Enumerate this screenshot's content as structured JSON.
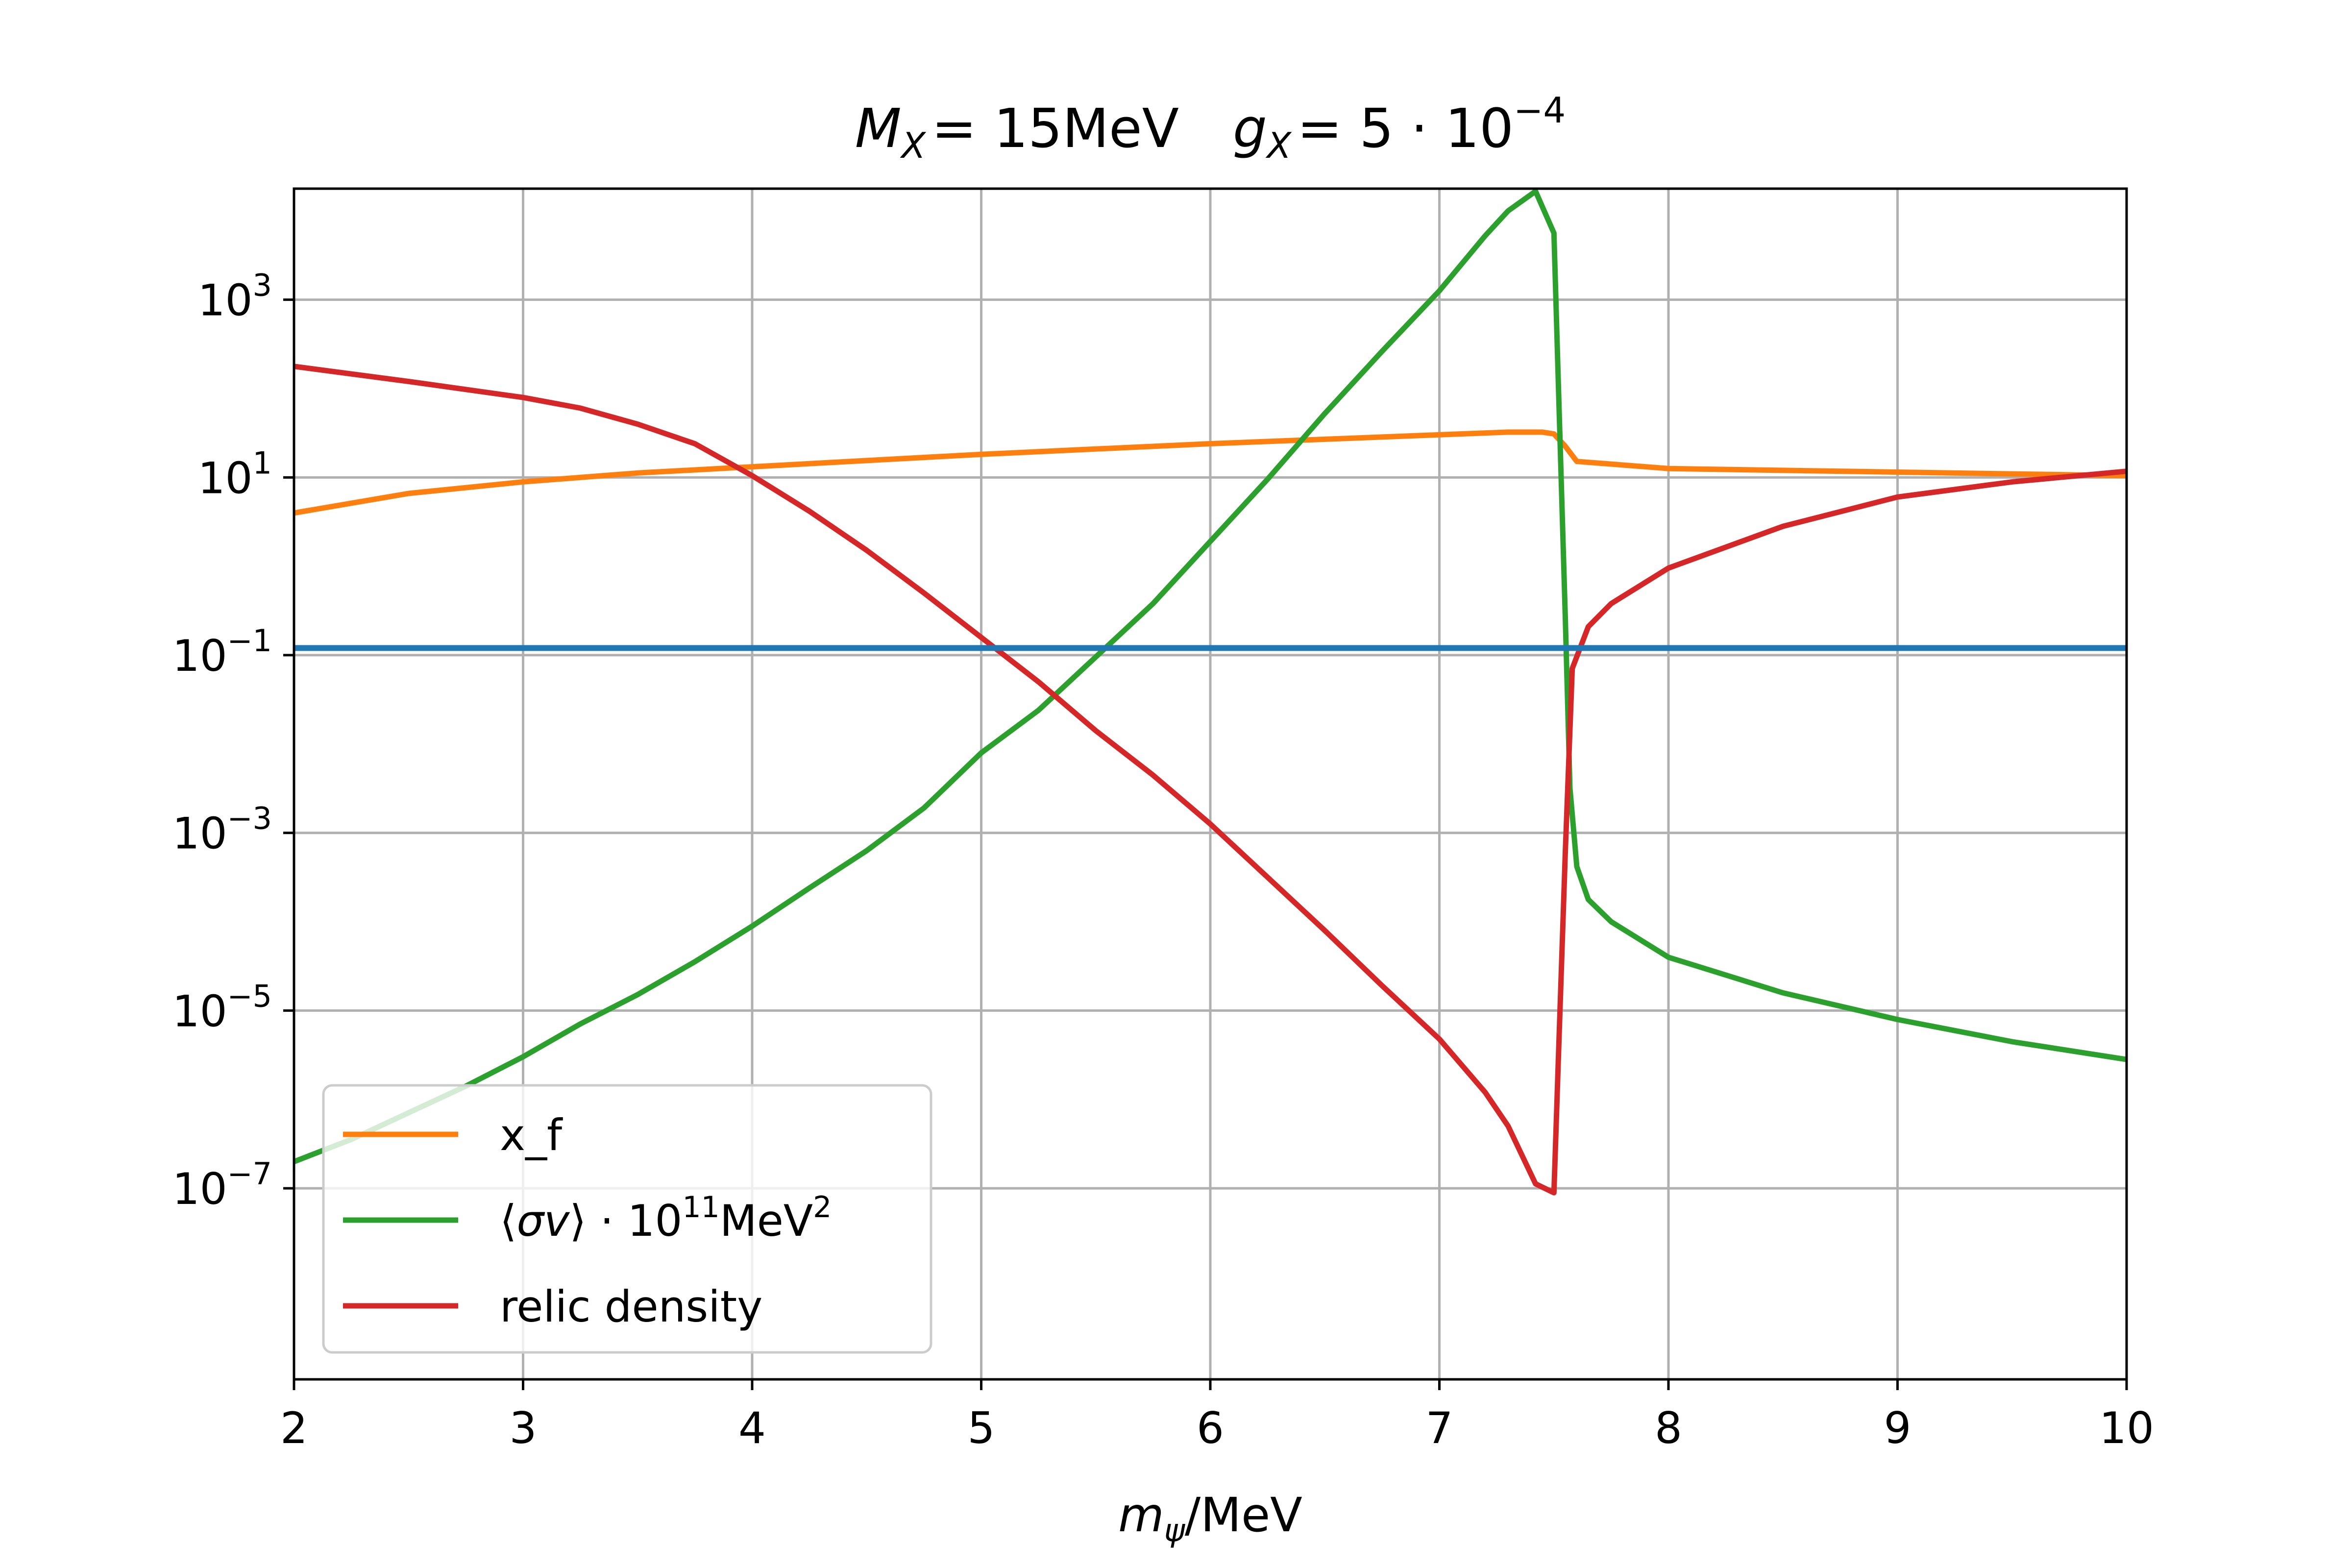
{
  "chart_data": {
    "type": "line",
    "title_parts": {
      "mx_symbol": "M",
      "mx_sub": "X",
      "mx_value": "= 15MeV",
      "gx_symbol": "g",
      "gx_sub": "X",
      "gx_value": "= 5 · 10",
      "gx_exp": "−4"
    },
    "xlabel_parts": {
      "symbol": "m",
      "sub": "ψ",
      "unit": "/MeV"
    },
    "ylabel": "",
    "xlim": [
      2,
      10
    ],
    "ylim_log10": [
      -9.15,
      4.25
    ],
    "y_scale": "log",
    "grid": true,
    "x_ticks": [
      2,
      3,
      4,
      5,
      6,
      7,
      8,
      9,
      10
    ],
    "x_tick_labels": [
      "2",
      "3",
      "4",
      "5",
      "6",
      "7",
      "8",
      "9",
      "10"
    ],
    "y_ticks": [
      {
        "base": "10",
        "exp": "3",
        "log10": 3
      },
      {
        "base": "10",
        "exp": "1",
        "log10": 1
      },
      {
        "base": "10",
        "exp": "−1",
        "log10": -1
      },
      {
        "base": "10",
        "exp": "−3",
        "log10": -3
      },
      {
        "base": "10",
        "exp": "−5",
        "log10": -5
      },
      {
        "base": "10",
        "exp": "−7",
        "log10": -7
      }
    ],
    "legend_position": "lower-left",
    "series": [
      {
        "name": "x_f",
        "legend_label": "x_f",
        "color": "#ff7f0e",
        "x": [
          2.0,
          2.5,
          3.0,
          3.5,
          4.0,
          4.5,
          5.0,
          5.5,
          6.0,
          6.5,
          7.0,
          7.3,
          7.45,
          7.5,
          7.55,
          7.6,
          8.0,
          8.5,
          9.0,
          9.5,
          10.0
        ],
        "log10_y": [
          0.6,
          0.82,
          0.95,
          1.05,
          1.12,
          1.19,
          1.26,
          1.32,
          1.38,
          1.43,
          1.48,
          1.51,
          1.51,
          1.49,
          1.35,
          1.18,
          1.1,
          1.08,
          1.06,
          1.04,
          1.02
        ]
      },
      {
        "name": "sigma_v",
        "legend_parts": {
          "open": "⟨",
          "sym": "σv",
          "close": "⟩",
          "dot": " · 10",
          "exp1": "11",
          "unit": "MeV",
          "exp2": "2"
        },
        "color": "#2ca02c",
        "x": [
          2.0,
          2.25,
          2.5,
          2.75,
          3.0,
          3.25,
          3.5,
          3.75,
          4.0,
          4.25,
          4.5,
          4.75,
          5.0,
          5.25,
          5.5,
          5.75,
          6.0,
          6.25,
          6.5,
          6.75,
          7.0,
          7.2,
          7.3,
          7.42,
          7.5,
          7.52,
          7.55,
          7.57,
          7.6,
          7.65,
          7.75,
          8.0,
          8.5,
          9.0,
          9.5,
          10.0
        ],
        "log10_y": [
          -6.7,
          -6.45,
          -6.15,
          -5.85,
          -5.52,
          -5.15,
          -4.82,
          -4.45,
          -4.05,
          -3.62,
          -3.2,
          -2.72,
          -2.1,
          -1.62,
          -1.02,
          -0.42,
          0.28,
          0.98,
          1.72,
          2.42,
          3.1,
          3.72,
          4.0,
          4.22,
          3.75,
          2.0,
          -0.6,
          -2.5,
          -3.38,
          -3.75,
          -4.0,
          -4.4,
          -4.8,
          -5.1,
          -5.35,
          -5.55
        ]
      },
      {
        "name": "relic_density",
        "legend_label": "relic density",
        "color": "#d62728",
        "x": [
          2.0,
          2.5,
          3.0,
          3.25,
          3.5,
          3.75,
          4.0,
          4.25,
          4.5,
          4.75,
          5.0,
          5.25,
          5.5,
          5.75,
          6.0,
          6.25,
          6.5,
          6.75,
          7.0,
          7.2,
          7.3,
          7.42,
          7.5,
          7.52,
          7.55,
          7.58,
          7.65,
          7.75,
          8.0,
          8.5,
          9.0,
          9.5,
          10.0
        ],
        "log10_y": [
          2.25,
          2.08,
          1.9,
          1.78,
          1.6,
          1.38,
          1.02,
          0.62,
          0.18,
          -0.3,
          -0.8,
          -1.3,
          -1.85,
          -2.35,
          -2.9,
          -3.5,
          -4.1,
          -4.72,
          -5.32,
          -5.92,
          -6.3,
          -6.95,
          -7.05,
          -5.5,
          -3.2,
          -1.15,
          -0.68,
          -0.42,
          -0.02,
          0.45,
          0.78,
          0.95,
          1.07
        ]
      },
      {
        "name": "observed_relic_density",
        "legend_label": "",
        "color": "#1f77b4",
        "x": [
          2.0,
          10.0
        ],
        "log10_y": [
          -0.92,
          -0.92
        ]
      }
    ]
  }
}
